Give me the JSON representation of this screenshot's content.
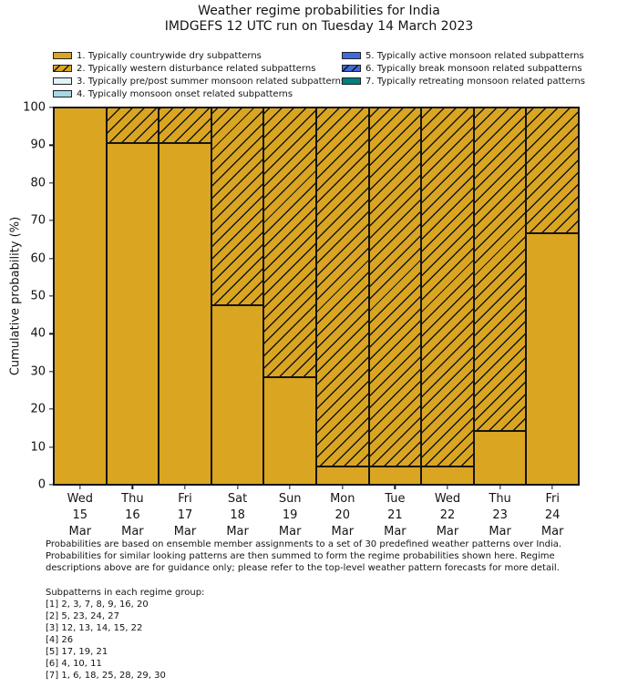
{
  "title": {
    "line1": "Weather regime probabilities for India",
    "line2": "IMDGEFS 12 UTC run on Tuesday 14 March 2023"
  },
  "chart_data": {
    "type": "bar",
    "stacked": true,
    "title": "Weather regime probabilities for India",
    "subtitle": "IMDGEFS 12 UTC run on Tuesday 14 March 2023",
    "xlabel": "",
    "ylabel": "Cumulative probability (%)",
    "ylim": [
      0,
      100
    ],
    "yticks": [
      0,
      10,
      20,
      30,
      40,
      50,
      60,
      70,
      80,
      90,
      100
    ],
    "grid": false,
    "legend_position": "top",
    "legend_columns": [
      4,
      3
    ],
    "edge_color": "#141414",
    "categories": [
      {
        "day": "Wed",
        "date": "15",
        "month": "Mar"
      },
      {
        "day": "Thu",
        "date": "16",
        "month": "Mar"
      },
      {
        "day": "Fri",
        "date": "17",
        "month": "Mar"
      },
      {
        "day": "Sat",
        "date": "18",
        "month": "Mar"
      },
      {
        "day": "Sun",
        "date": "19",
        "month": "Mar"
      },
      {
        "day": "Mon",
        "date": "20",
        "month": "Mar"
      },
      {
        "day": "Tue",
        "date": "21",
        "month": "Mar"
      },
      {
        "day": "Wed",
        "date": "22",
        "month": "Mar"
      },
      {
        "day": "Thu",
        "date": "23",
        "month": "Mar"
      },
      {
        "day": "Fri",
        "date": "24",
        "month": "Mar"
      }
    ],
    "series": [
      {
        "name": "1. Typically countrywide dry subpatterns",
        "color": "#DAA520",
        "hatch": false,
        "values": [
          100,
          90.5,
          90.5,
          47.6,
          28.6,
          4.8,
          4.8,
          4.8,
          14.3,
          66.7
        ]
      },
      {
        "name": "2. Typically western disturbance related subpatterns",
        "color": "#DAA520",
        "hatch": true,
        "values": [
          0,
          9.5,
          9.5,
          52.4,
          71.4,
          95.2,
          95.2,
          95.2,
          85.7,
          33.3
        ]
      },
      {
        "name": "3. Typically pre/post summer monsoon related subpatterns",
        "color": "#DFF3F3",
        "hatch": false,
        "values": [
          0,
          0,
          0,
          0,
          0,
          0,
          0,
          0,
          0,
          0
        ]
      },
      {
        "name": "4. Typically monsoon onset related subpatterns",
        "color": "#A6D9E7",
        "hatch": false,
        "values": [
          0,
          0,
          0,
          0,
          0,
          0,
          0,
          0,
          0,
          0
        ]
      },
      {
        "name": "5. Typically active monsoon related subpatterns",
        "color": "#4169E1",
        "hatch": false,
        "values": [
          0,
          0,
          0,
          0,
          0,
          0,
          0,
          0,
          0,
          0
        ]
      },
      {
        "name": "6. Typically break monsoon related subpatterns",
        "color": "#4169E1",
        "hatch": true,
        "values": [
          0,
          0,
          0,
          0,
          0,
          0,
          0,
          0,
          0,
          0
        ]
      },
      {
        "name": "7. Typically retreating monsoon related patterns",
        "color": "#008080",
        "hatch": false,
        "values": [
          0,
          0,
          0,
          0,
          0,
          0,
          0,
          0,
          0,
          0
        ]
      }
    ]
  },
  "footnote": {
    "line1": "Probabilities are based on ensemble member assignments to a set of 30 predefined weather patterns over India.",
    "line2": "Probabilities for similar looking patterns are then summed to form the regime probabilities shown here. Regime",
    "line3": "descriptions above are for guidance only; please refer to the top-level weather pattern forecasts for more detail."
  },
  "subpatterns": {
    "heading": "Subpatterns in each regime group:",
    "rows": [
      "[1] 2, 3, 7, 8, 9, 16, 20",
      "[2] 5, 23, 24, 27",
      "[3] 12, 13, 14, 15, 22",
      "[4] 26",
      "[5] 17, 19, 21",
      "[6] 4, 10, 11",
      "[7] 1, 6, 18, 25, 28, 29, 30"
    ]
  }
}
